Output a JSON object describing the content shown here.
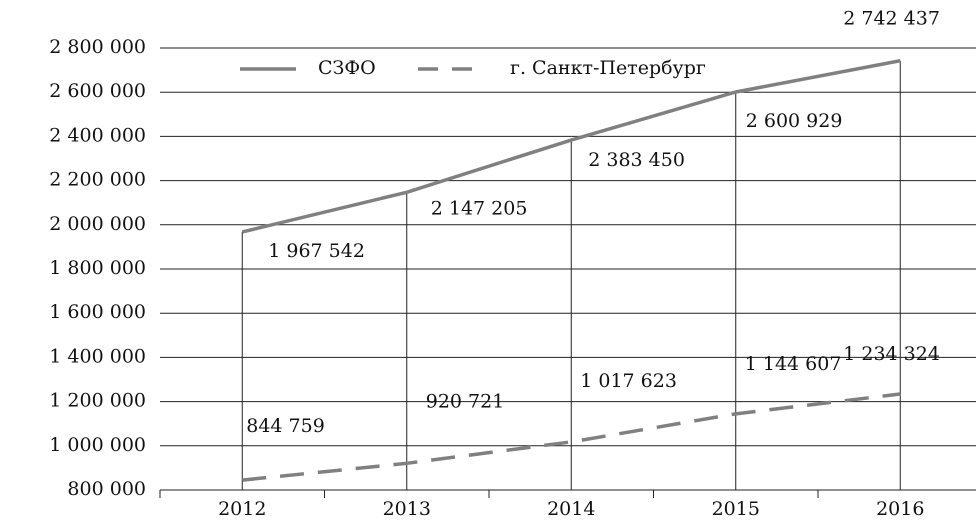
{
  "chart_data": {
    "type": "line",
    "categories": [
      "2012",
      "2013",
      "2014",
      "2015",
      "2016"
    ],
    "series": [
      {
        "name": "СЗФО",
        "color": "#808080",
        "dash": false,
        "values": [
          1967542,
          2147205,
          2383450,
          2600929,
          2742437
        ],
        "value_labels": [
          "1 967 542",
          "2 147 205",
          "2 383 450",
          "2 600 929",
          "2 742 437"
        ]
      },
      {
        "name": "г. Санкт-Петербург",
        "color": "#808080",
        "dash": true,
        "values": [
          844759,
          920721,
          1017623,
          1144607,
          1234324
        ],
        "value_labels": [
          "844 759",
          "920 721",
          "1 017 623",
          "1 144 607",
          "1 234 324"
        ]
      }
    ],
    "ylim": [
      800000,
      2800000
    ],
    "yticks": [
      {
        "value": 800000,
        "label": "800 000"
      },
      {
        "value": 1000000,
        "label": "1 000 000"
      },
      {
        "value": 1200000,
        "label": "1 200 000"
      },
      {
        "value": 1400000,
        "label": "1 400 000"
      },
      {
        "value": 1600000,
        "label": "1 600 000"
      },
      {
        "value": 1800000,
        "label": "1 800 000"
      },
      {
        "value": 2000000,
        "label": "2 000 000"
      },
      {
        "value": 2200000,
        "label": "2 200 000"
      },
      {
        "value": 2400000,
        "label": "2 400 000"
      },
      {
        "value": 2600000,
        "label": "2 600 000"
      },
      {
        "value": 2800000,
        "label": "2 800 000"
      }
    ],
    "grid": true,
    "legend": "top"
  }
}
